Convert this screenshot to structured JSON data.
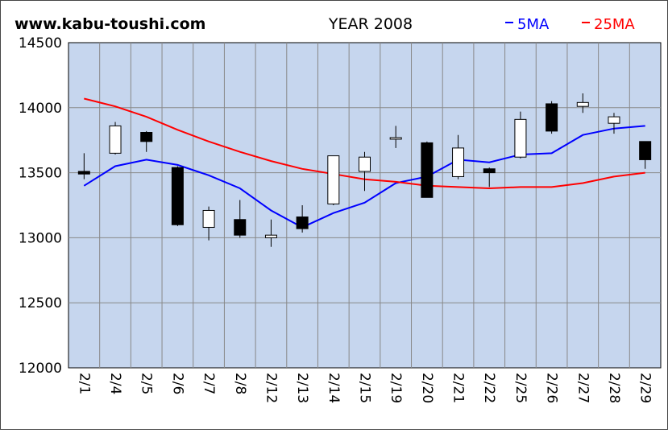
{
  "header": {
    "site": "www.kabu-toushi.com",
    "title": "YEAR 2008",
    "legend": [
      {
        "label": "5MA",
        "color": "#0000ff"
      },
      {
        "label": "25MA",
        "color": "#ff0000"
      }
    ]
  },
  "chart_data": {
    "type": "candlestick",
    "title": "YEAR 2008",
    "ylim": [
      12000,
      14500
    ],
    "yticks": [
      12000,
      12500,
      13000,
      13500,
      14000,
      14500
    ],
    "grid": true,
    "legend_position": "top-right",
    "colors": {
      "plot_bg": "#c6d6ee",
      "grid": "#888888",
      "up_body": "#ffffff",
      "down_body": "#000000",
      "ma5": "#0000ff",
      "ma25": "#ff0000"
    },
    "categories": [
      "2/1",
      "2/4",
      "2/5",
      "2/6",
      "2/7",
      "2/8",
      "2/12",
      "2/13",
      "2/14",
      "2/15",
      "2/19",
      "2/20",
      "2/21",
      "2/22",
      "2/25",
      "2/26",
      "2/27",
      "2/28",
      "2/29"
    ],
    "candles": [
      {
        "open": 13510,
        "high": 13650,
        "low": 13450,
        "close": 13490
      },
      {
        "open": 13650,
        "high": 13890,
        "low": 13640,
        "close": 13860
      },
      {
        "open": 13810,
        "high": 13820,
        "low": 13660,
        "close": 13740
      },
      {
        "open": 13540,
        "high": 13550,
        "low": 13090,
        "close": 13100
      },
      {
        "open": 13080,
        "high": 13240,
        "low": 12980,
        "close": 13210
      },
      {
        "open": 13140,
        "high": 13290,
        "low": 13000,
        "close": 13020
      },
      {
        "open": 13000,
        "high": 13140,
        "low": 12930,
        "close": 13020
      },
      {
        "open": 13160,
        "high": 13250,
        "low": 13040,
        "close": 13070
      },
      {
        "open": 13260,
        "high": 13630,
        "low": 13250,
        "close": 13630
      },
      {
        "open": 13510,
        "high": 13660,
        "low": 13360,
        "close": 13620
      },
      {
        "open": 13760,
        "high": 13860,
        "low": 13690,
        "close": 13770
      },
      {
        "open": 13730,
        "high": 13740,
        "low": 13310,
        "close": 13310
      },
      {
        "open": 13470,
        "high": 13790,
        "low": 13450,
        "close": 13690
      },
      {
        "open": 13530,
        "high": 13540,
        "low": 13390,
        "close": 13500
      },
      {
        "open": 13620,
        "high": 13970,
        "low": 13610,
        "close": 13910
      },
      {
        "open": 14030,
        "high": 14050,
        "low": 13800,
        "close": 13820
      },
      {
        "open": 14010,
        "high": 14110,
        "low": 13960,
        "close": 14040
      },
      {
        "open": 13880,
        "high": 13960,
        "low": 13800,
        "close": 13930
      },
      {
        "open": 13740,
        "high": 13740,
        "low": 13530,
        "close": 13600
      }
    ],
    "series": [
      {
        "name": "5MA",
        "color": "#0000ff",
        "values": [
          13400,
          13550,
          13600,
          13560,
          13480,
          13380,
          13210,
          13080,
          13190,
          13270,
          13420,
          13470,
          13600,
          13580,
          13640,
          13650,
          13790,
          13840,
          13860
        ]
      },
      {
        "name": "25MA",
        "color": "#ff0000",
        "values": [
          14070,
          14010,
          13930,
          13830,
          13740,
          13660,
          13590,
          13530,
          13490,
          13450,
          13430,
          13400,
          13390,
          13380,
          13390,
          13390,
          13420,
          13470,
          13500
        ]
      }
    ]
  }
}
